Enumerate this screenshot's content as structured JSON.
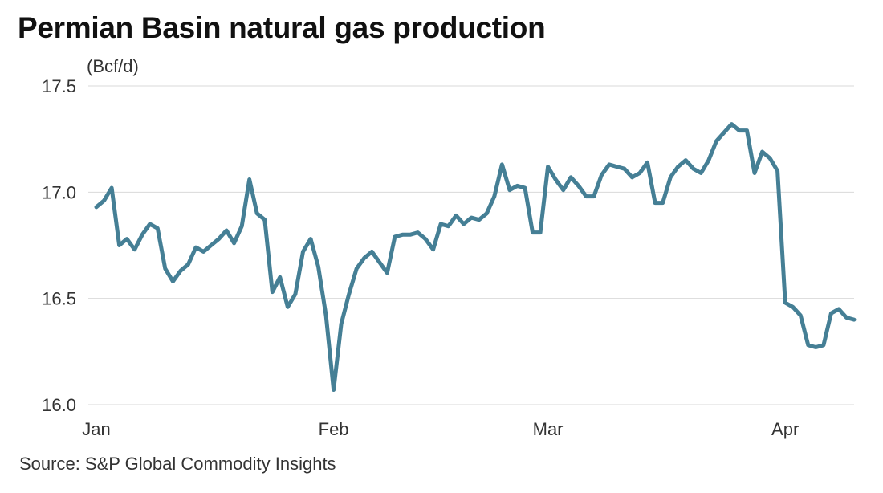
{
  "header": {
    "title": "Permian Basin natural gas production",
    "unit": "(Bcf/d)"
  },
  "footer": {
    "source": "Source: S&P Global Commodity Insights"
  },
  "colors": {
    "series": "#457f95",
    "grid": "#d9d9d9"
  },
  "chart_data": {
    "type": "line",
    "title": "Permian Basin natural gas production",
    "ylabel": "(Bcf/d)",
    "xlabel": "",
    "ylim": [
      16.0,
      17.5
    ],
    "yticks": [
      "16.0",
      "16.5",
      "17.0",
      "17.5"
    ],
    "xlim": [
      "2023-01-01",
      "2023-04-10"
    ],
    "xticks": [
      {
        "label": "Jan",
        "date": "2023-01-01"
      },
      {
        "label": "Feb",
        "date": "2023-02-01"
      },
      {
        "label": "Mar",
        "date": "2023-03-01"
      },
      {
        "label": "Apr",
        "date": "2023-04-01"
      }
    ],
    "grid": true,
    "series": [
      {
        "points": [
          [
            "2023-01-01",
            16.93
          ],
          [
            "2023-01-02",
            16.96
          ],
          [
            "2023-01-03",
            17.02
          ],
          [
            "2023-01-04",
            16.75
          ],
          [
            "2023-01-05",
            16.78
          ],
          [
            "2023-01-06",
            16.73
          ],
          [
            "2023-01-07",
            16.8
          ],
          [
            "2023-01-08",
            16.85
          ],
          [
            "2023-01-09",
            16.83
          ],
          [
            "2023-01-10",
            16.64
          ],
          [
            "2023-01-11",
            16.58
          ],
          [
            "2023-01-12",
            16.63
          ],
          [
            "2023-01-13",
            16.66
          ],
          [
            "2023-01-14",
            16.74
          ],
          [
            "2023-01-15",
            16.72
          ],
          [
            "2023-01-16",
            16.75
          ],
          [
            "2023-01-17",
            16.78
          ],
          [
            "2023-01-18",
            16.82
          ],
          [
            "2023-01-19",
            16.76
          ],
          [
            "2023-01-20",
            16.84
          ],
          [
            "2023-01-21",
            17.06
          ],
          [
            "2023-01-22",
            16.9
          ],
          [
            "2023-01-23",
            16.87
          ],
          [
            "2023-01-24",
            16.53
          ],
          [
            "2023-01-25",
            16.6
          ],
          [
            "2023-01-26",
            16.46
          ],
          [
            "2023-01-27",
            16.52
          ],
          [
            "2023-01-28",
            16.72
          ],
          [
            "2023-01-29",
            16.78
          ],
          [
            "2023-01-30",
            16.65
          ],
          [
            "2023-01-31",
            16.42
          ],
          [
            "2023-02-01",
            16.07
          ],
          [
            "2023-02-02",
            16.38
          ],
          [
            "2023-02-03",
            16.52
          ],
          [
            "2023-02-04",
            16.64
          ],
          [
            "2023-02-05",
            16.69
          ],
          [
            "2023-02-06",
            16.72
          ],
          [
            "2023-02-07",
            16.67
          ],
          [
            "2023-02-08",
            16.62
          ],
          [
            "2023-02-09",
            16.79
          ],
          [
            "2023-02-10",
            16.8
          ],
          [
            "2023-02-11",
            16.8
          ],
          [
            "2023-02-12",
            16.81
          ],
          [
            "2023-02-13",
            16.78
          ],
          [
            "2023-02-14",
            16.73
          ],
          [
            "2023-02-15",
            16.85
          ],
          [
            "2023-02-16",
            16.84
          ],
          [
            "2023-02-17",
            16.89
          ],
          [
            "2023-02-18",
            16.85
          ],
          [
            "2023-02-19",
            16.88
          ],
          [
            "2023-02-20",
            16.87
          ],
          [
            "2023-02-21",
            16.9
          ],
          [
            "2023-02-22",
            16.98
          ],
          [
            "2023-02-23",
            17.13
          ],
          [
            "2023-02-24",
            17.01
          ],
          [
            "2023-02-25",
            17.03
          ],
          [
            "2023-02-26",
            17.02
          ],
          [
            "2023-02-27",
            16.81
          ],
          [
            "2023-02-28",
            16.81
          ],
          [
            "2023-03-01",
            17.12
          ],
          [
            "2023-03-02",
            17.06
          ],
          [
            "2023-03-03",
            17.01
          ],
          [
            "2023-03-04",
            17.07
          ],
          [
            "2023-03-05",
            17.03
          ],
          [
            "2023-03-06",
            16.98
          ],
          [
            "2023-03-07",
            16.98
          ],
          [
            "2023-03-08",
            17.08
          ],
          [
            "2023-03-09",
            17.13
          ],
          [
            "2023-03-10",
            17.12
          ],
          [
            "2023-03-11",
            17.11
          ],
          [
            "2023-03-12",
            17.07
          ],
          [
            "2023-03-13",
            17.09
          ],
          [
            "2023-03-14",
            17.14
          ],
          [
            "2023-03-15",
            16.95
          ],
          [
            "2023-03-16",
            16.95
          ],
          [
            "2023-03-17",
            17.07
          ],
          [
            "2023-03-18",
            17.12
          ],
          [
            "2023-03-19",
            17.15
          ],
          [
            "2023-03-20",
            17.11
          ],
          [
            "2023-03-21",
            17.09
          ],
          [
            "2023-03-22",
            17.15
          ],
          [
            "2023-03-23",
            17.24
          ],
          [
            "2023-03-24",
            17.28
          ],
          [
            "2023-03-25",
            17.32
          ],
          [
            "2023-03-26",
            17.29
          ],
          [
            "2023-03-27",
            17.29
          ],
          [
            "2023-03-28",
            17.09
          ],
          [
            "2023-03-29",
            17.19
          ],
          [
            "2023-03-30",
            17.16
          ],
          [
            "2023-03-31",
            17.1
          ],
          [
            "2023-04-01",
            16.48
          ],
          [
            "2023-04-02",
            16.46
          ],
          [
            "2023-04-03",
            16.42
          ],
          [
            "2023-04-04",
            16.28
          ],
          [
            "2023-04-05",
            16.27
          ],
          [
            "2023-04-06",
            16.28
          ],
          [
            "2023-04-07",
            16.43
          ],
          [
            "2023-04-08",
            16.45
          ],
          [
            "2023-04-09",
            16.41
          ],
          [
            "2023-04-10",
            16.4
          ]
        ]
      }
    ]
  }
}
